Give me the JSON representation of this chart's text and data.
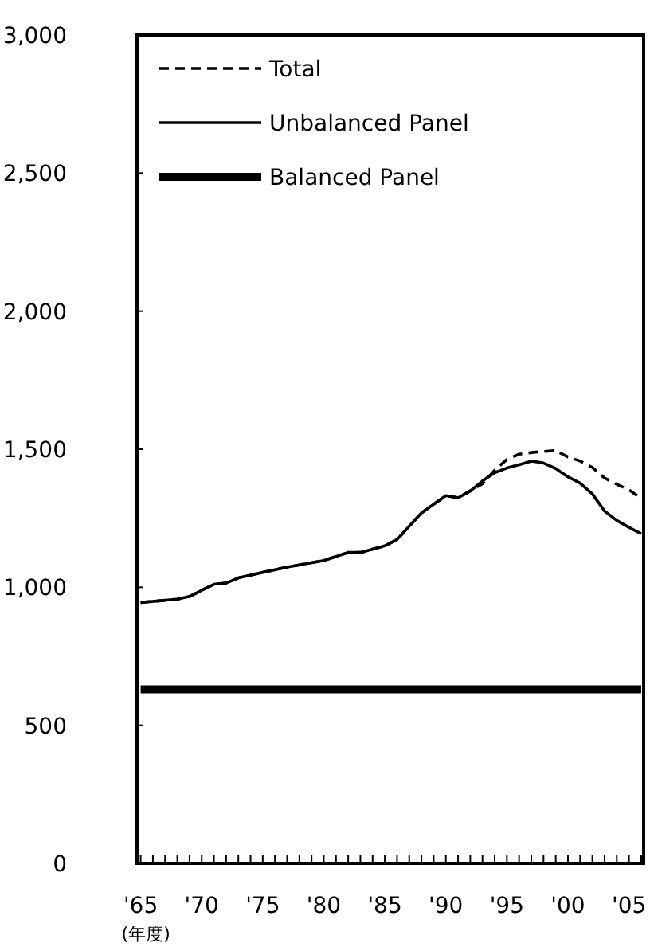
{
  "chart_data": {
    "type": "line",
    "xlabel": "(年度)",
    "legend": "top left",
    "xlim": [
      1964.7,
      2006.2
    ],
    "ylim": [
      0,
      3000
    ],
    "yticks": [
      {
        "value": 0,
        "label": "0"
      },
      {
        "value": 500,
        "label": "500"
      },
      {
        "value": 1000,
        "label": "1,000"
      },
      {
        "value": 1500,
        "label": "1,500"
      },
      {
        "value": 2000,
        "label": "2,000"
      },
      {
        "value": 2500,
        "label": "2,500"
      },
      {
        "value": 3000,
        "label": "3,000"
      }
    ],
    "xticks": [
      {
        "value": 1965,
        "label": "'65"
      },
      {
        "value": 1966,
        "label": null
      },
      {
        "value": 1967,
        "label": null
      },
      {
        "value": 1968,
        "label": null
      },
      {
        "value": 1969,
        "label": null
      },
      {
        "value": 1970,
        "label": "'70"
      },
      {
        "value": 1971,
        "label": null
      },
      {
        "value": 1972,
        "label": null
      },
      {
        "value": 1973,
        "label": null
      },
      {
        "value": 1974,
        "label": null
      },
      {
        "value": 1975,
        "label": "'75"
      },
      {
        "value": 1976,
        "label": null
      },
      {
        "value": 1977,
        "label": null
      },
      {
        "value": 1978,
        "label": null
      },
      {
        "value": 1979,
        "label": null
      },
      {
        "value": 1980,
        "label": "'80"
      },
      {
        "value": 1981,
        "label": null
      },
      {
        "value": 1982,
        "label": null
      },
      {
        "value": 1983,
        "label": null
      },
      {
        "value": 1984,
        "label": null
      },
      {
        "value": 1985,
        "label": "'85"
      },
      {
        "value": 1986,
        "label": null
      },
      {
        "value": 1987,
        "label": null
      },
      {
        "value": 1988,
        "label": null
      },
      {
        "value": 1989,
        "label": null
      },
      {
        "value": 1990,
        "label": "'90"
      },
      {
        "value": 1991,
        "label": null
      },
      {
        "value": 1992,
        "label": null
      },
      {
        "value": 1993,
        "label": null
      },
      {
        "value": 1994,
        "label": null
      },
      {
        "value": 1995,
        "label": "'95"
      },
      {
        "value": 1996,
        "label": null
      },
      {
        "value": 1997,
        "label": null
      },
      {
        "value": 1998,
        "label": null
      },
      {
        "value": 1999,
        "label": null
      },
      {
        "value": 2000,
        "label": "'00"
      },
      {
        "value": 2001,
        "label": null
      },
      {
        "value": 2002,
        "label": null
      },
      {
        "value": 2003,
        "label": null
      },
      {
        "value": 2004,
        "label": null
      },
      {
        "value": 2005,
        "label": "'05"
      },
      {
        "value": 2006,
        "label": null
      }
    ],
    "series": [
      {
        "name": "Total",
        "color": "#000000",
        "line_style": "dashed",
        "x": [
          1965,
          1968,
          1969,
          1971,
          1972,
          1973,
          1975,
          1977,
          1980,
          1982,
          1983,
          1985,
          1986,
          1988,
          1990,
          1991,
          1992,
          1993,
          1994,
          1995,
          1996,
          1997,
          1998,
          1999,
          2000,
          2001,
          2002,
          2003,
          2004,
          2005,
          2006
        ],
        "values": [
          945,
          957,
          967,
          1011,
          1015,
          1034,
          1054,
          1073,
          1097,
          1126,
          1126,
          1150,
          1173,
          1269,
          1332,
          1324,
          1350,
          1375,
          1424,
          1463,
          1482,
          1488,
          1492,
          1495,
          1472,
          1457,
          1434,
          1396,
          1373,
          1353,
          1322
        ]
      },
      {
        "name": "Unbalanced Panel",
        "color": "#000000",
        "line_style": "solid",
        "x": [
          1965,
          1968,
          1969,
          1971,
          1972,
          1973,
          1975,
          1977,
          1980,
          1982,
          1983,
          1985,
          1986,
          1988,
          1990,
          1991,
          1992,
          1993,
          1994,
          1995,
          1996,
          1997,
          1998,
          1999,
          2000,
          2001,
          2002,
          2003,
          2004,
          2005,
          2006
        ],
        "values": [
          945,
          957,
          967,
          1011,
          1015,
          1034,
          1054,
          1073,
          1097,
          1126,
          1126,
          1150,
          1173,
          1269,
          1332,
          1324,
          1348,
          1385,
          1415,
          1432,
          1444,
          1457,
          1450,
          1430,
          1400,
          1377,
          1338,
          1276,
          1242,
          1217,
          1194
        ]
      },
      {
        "name": "Balanced Panel",
        "color": "#000000",
        "line_style": "solid",
        "x": [
          1965,
          2006
        ],
        "values": [
          630,
          630
        ]
      }
    ]
  }
}
